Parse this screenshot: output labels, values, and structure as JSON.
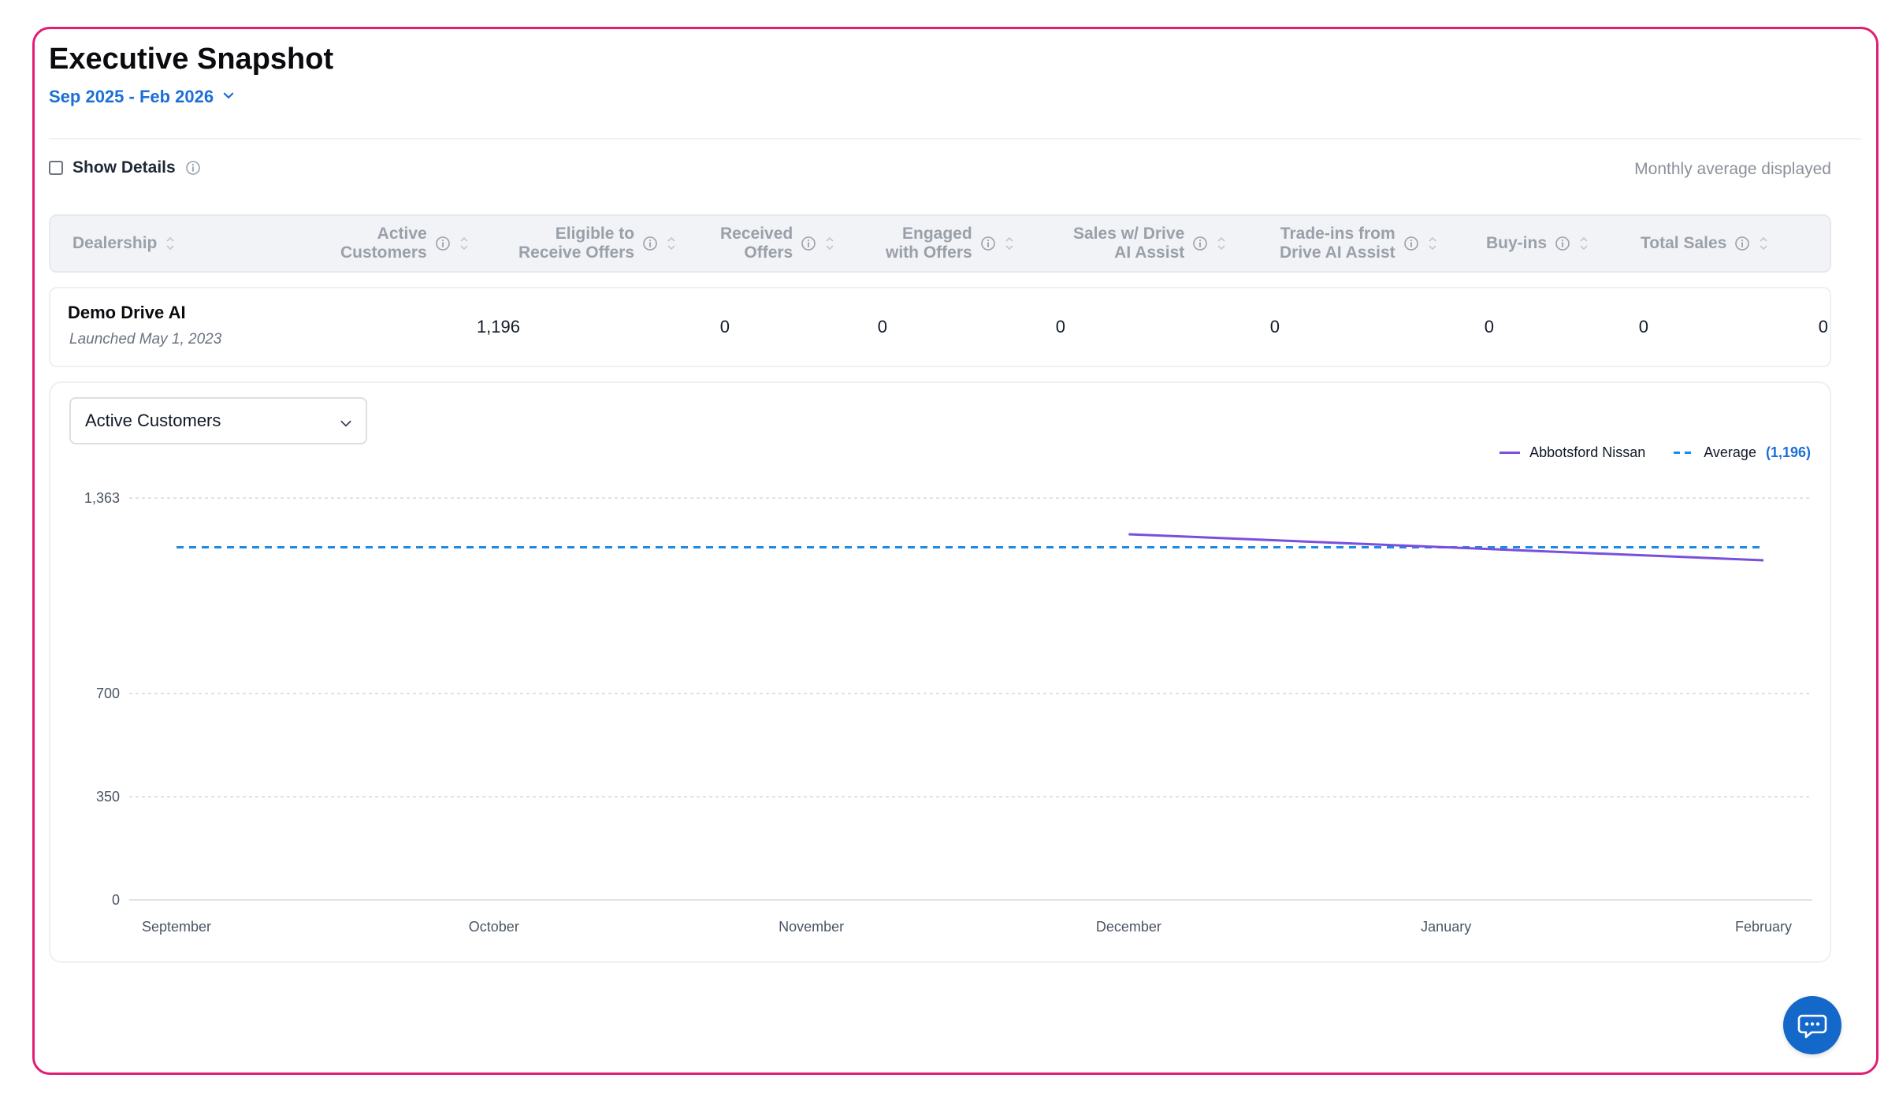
{
  "header": {
    "title": "Executive Snapshot",
    "date_range": "Sep 2025 - Feb 2026"
  },
  "controls": {
    "show_details_label": "Show Details",
    "show_details_checked": false,
    "monthly_note": "Monthly average displayed"
  },
  "table": {
    "columns": [
      {
        "line1": "Dealership",
        "line2": ""
      },
      {
        "line1": "Active",
        "line2": "Customers"
      },
      {
        "line1": "Eligible to",
        "line2": "Receive Offers"
      },
      {
        "line1": "Received",
        "line2": "Offers"
      },
      {
        "line1": "Engaged",
        "line2": "with Offers"
      },
      {
        "line1": "Sales w/ Drive",
        "line2": "AI Assist"
      },
      {
        "line1": "Trade-ins from",
        "line2": "Drive AI Assist"
      },
      {
        "line1": "Buy-ins",
        "line2": ""
      },
      {
        "line1": "Total Sales",
        "line2": ""
      }
    ],
    "rows": [
      {
        "dealership": "Demo Drive AI",
        "launched": "Launched May 1, 2023",
        "active_customers": "1,196",
        "eligible": "0",
        "received": "0",
        "engaged": "0",
        "sales": "0",
        "tradeins": "0",
        "buyins": "0",
        "total_sales": "0"
      }
    ]
  },
  "chart_panel": {
    "selected_metric": "Active Customers",
    "legend": {
      "series_label": "Abbotsford Nissan",
      "average_label": "Average",
      "average_value": "(1,196)"
    }
  },
  "colors": {
    "accent": "#1d6fd6",
    "series_line": "#7a4fdc",
    "average_line": "#1d8ae6",
    "frame_border": "#e11d74"
  },
  "chart_data": {
    "type": "line",
    "categories": [
      "September",
      "October",
      "November",
      "December",
      "January",
      "February"
    ],
    "series": [
      {
        "name": "Abbotsford Nissan",
        "values": [
          null,
          null,
          null,
          1240,
          1196,
          1152
        ]
      }
    ],
    "average": 1196,
    "y_ticks": [
      0,
      350,
      700,
      1363
    ],
    "ylim": [
      0,
      1363
    ],
    "grid": true,
    "legend_position": "top-right"
  }
}
